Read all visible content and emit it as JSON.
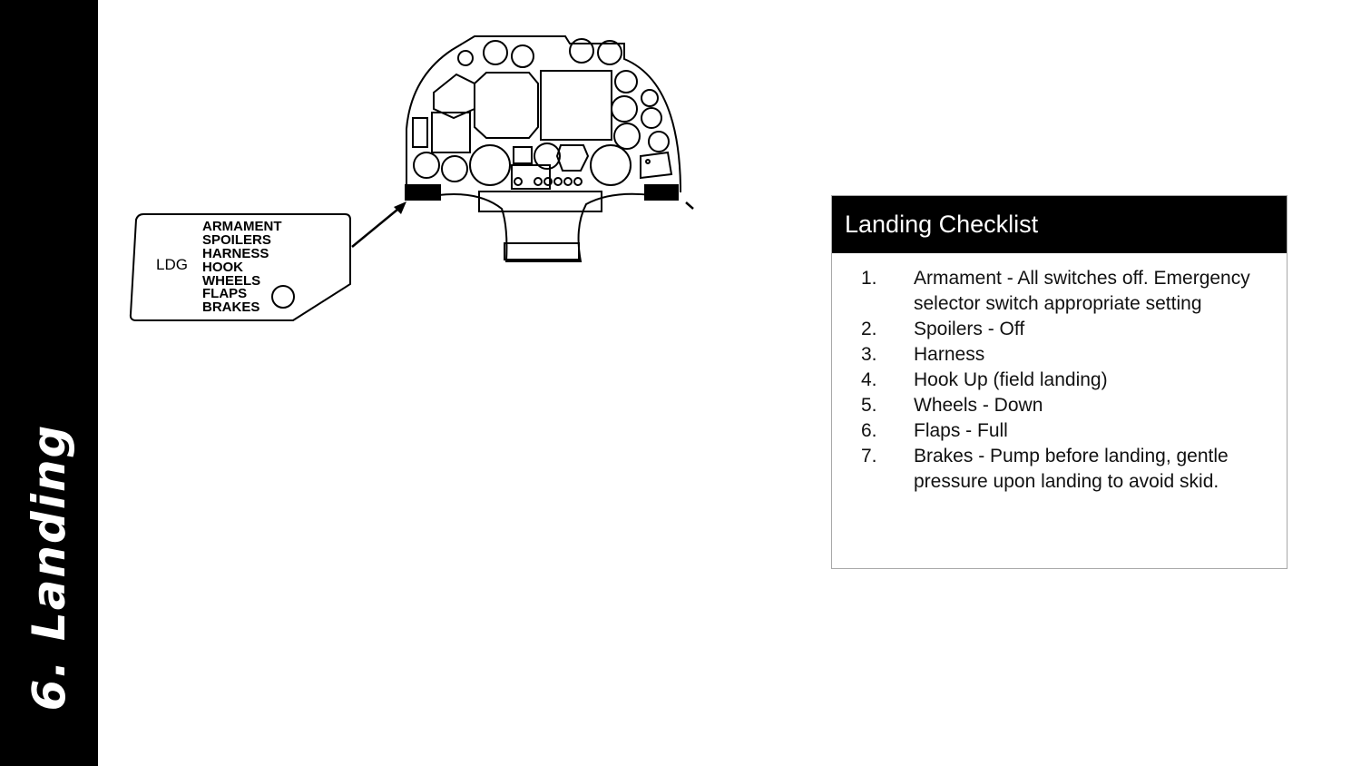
{
  "sidebar": {
    "title": "6. Landing"
  },
  "figure": {
    "placard": {
      "code": "LDG",
      "items": [
        "ARMAMENT",
        "SPOILERS",
        "HARNESS",
        "HOOK",
        "WHEELS",
        "FLAPS",
        "BRAKES"
      ]
    }
  },
  "checklist": {
    "title": "Landing Checklist",
    "items": [
      {
        "num": "1.",
        "text": "Armament - All switches off. Emergency selector switch appropriate setting"
      },
      {
        "num": "2.",
        "text": "Spoilers - Off"
      },
      {
        "num": "3.",
        "text": "Harness"
      },
      {
        "num": "4.",
        "text": "Hook Up (field landing)"
      },
      {
        "num": "5.",
        "text": "Wheels - Down"
      },
      {
        "num": "6.",
        "text": "Flaps - Full"
      },
      {
        "num": "7.",
        "text": "Brakes - Pump before landing, gentle pressure upon landing to avoid skid."
      }
    ]
  }
}
